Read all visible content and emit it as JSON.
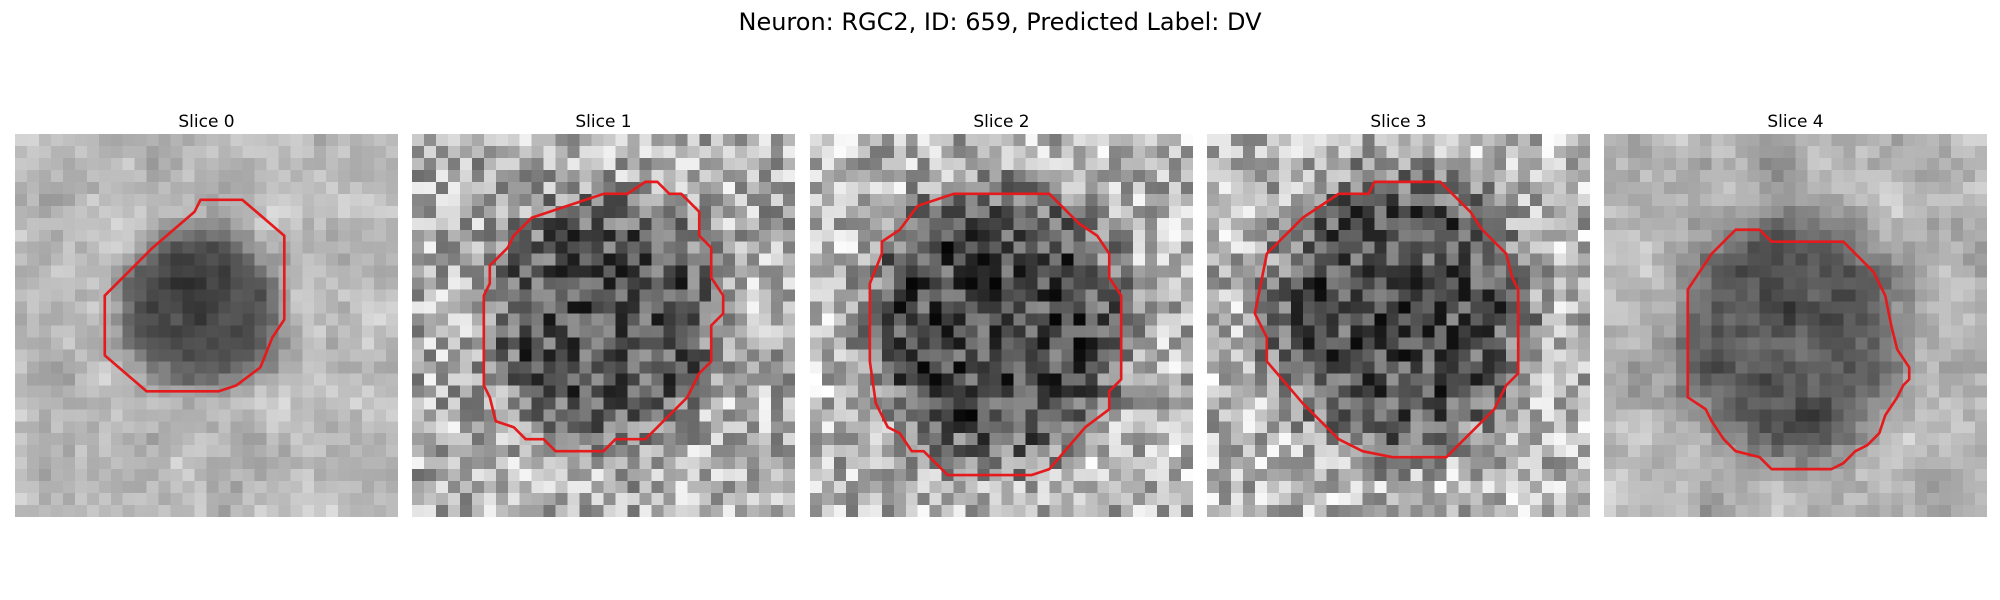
{
  "figure": {
    "title": "Neuron: RGC2, ID: 659, Predicted Label: DV",
    "contour_color": "#e41a1c"
  },
  "panels": [
    {
      "title": "Slice 0"
    },
    {
      "title": "Slice 1"
    },
    {
      "title": "Slice 2"
    },
    {
      "title": "Slice 3"
    },
    {
      "title": "Slice 4"
    }
  ]
}
